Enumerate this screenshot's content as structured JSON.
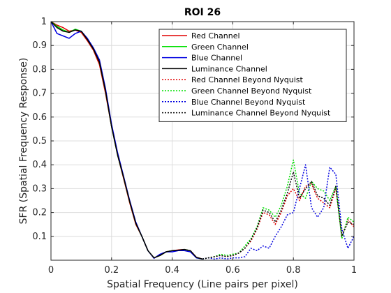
{
  "chart_data": {
    "type": "line",
    "title": "ROI 26",
    "xlabel": "Spatial Frequency (Line pairs per pixel)",
    "ylabel": "SFR (Spatial Frequency Response)",
    "xlim": [
      0,
      1.0
    ],
    "ylim": [
      0,
      1.0
    ],
    "xticks": [
      "0",
      "0.2",
      "0.4",
      "0.6",
      "0.8",
      "1"
    ],
    "yticks": [
      "0.1",
      "0.2",
      "0.3",
      "0.4",
      "0.5",
      "0.6",
      "0.7",
      "0.8",
      "0.9",
      "1"
    ],
    "grid": true,
    "legend_position": "top-right",
    "series": [
      {
        "name": "Red Channel",
        "color": "#e00000",
        "style": "solid",
        "x": [
          0,
          0.02,
          0.04,
          0.06,
          0.08,
          0.1,
          0.12,
          0.14,
          0.16,
          0.18,
          0.2,
          0.22,
          0.24,
          0.26,
          0.28,
          0.3,
          0.32,
          0.34,
          0.36,
          0.38,
          0.4,
          0.42,
          0.44,
          0.46,
          0.48,
          0.5
        ],
        "y": [
          1.0,
          0.985,
          0.975,
          0.96,
          0.965,
          0.955,
          0.92,
          0.88,
          0.82,
          0.7,
          0.56,
          0.44,
          0.34,
          0.24,
          0.15,
          0.1,
          0.04,
          0.01,
          0.02,
          0.035,
          0.04,
          0.043,
          0.045,
          0.04,
          0.012,
          0.005
        ]
      },
      {
        "name": "Green Channel",
        "color": "#00e000",
        "style": "solid",
        "x": [
          0,
          0.02,
          0.04,
          0.06,
          0.08,
          0.1,
          0.12,
          0.14,
          0.16,
          0.18,
          0.2,
          0.22,
          0.24,
          0.26,
          0.28,
          0.3,
          0.32,
          0.34,
          0.36,
          0.38,
          0.4,
          0.42,
          0.44,
          0.46,
          0.48,
          0.5
        ],
        "y": [
          1.0,
          0.98,
          0.965,
          0.955,
          0.968,
          0.96,
          0.925,
          0.885,
          0.83,
          0.71,
          0.56,
          0.44,
          0.345,
          0.245,
          0.155,
          0.1,
          0.04,
          0.01,
          0.02,
          0.035,
          0.04,
          0.04,
          0.045,
          0.04,
          0.01,
          0.005
        ]
      },
      {
        "name": "Blue Channel",
        "color": "#0000e0",
        "style": "solid",
        "x": [
          0,
          0.02,
          0.04,
          0.06,
          0.08,
          0.1,
          0.12,
          0.14,
          0.16,
          0.18,
          0.2,
          0.22,
          0.24,
          0.26,
          0.28,
          0.3,
          0.32,
          0.34,
          0.36,
          0.38,
          0.4,
          0.42,
          0.44,
          0.46,
          0.48,
          0.5
        ],
        "y": [
          1.0,
          0.95,
          0.94,
          0.93,
          0.95,
          0.96,
          0.93,
          0.89,
          0.84,
          0.72,
          0.57,
          0.45,
          0.35,
          0.25,
          0.16,
          0.1,
          0.04,
          0.008,
          0.025,
          0.035,
          0.035,
          0.04,
          0.04,
          0.035,
          0.01,
          0.005
        ]
      },
      {
        "name": "Luminance Channel",
        "color": "#000000",
        "style": "solid",
        "x": [
          0,
          0.02,
          0.04,
          0.06,
          0.08,
          0.1,
          0.12,
          0.14,
          0.16,
          0.18,
          0.2,
          0.22,
          0.24,
          0.26,
          0.28,
          0.3,
          0.32,
          0.34,
          0.36,
          0.38,
          0.4,
          0.42,
          0.44,
          0.46,
          0.48,
          0.5
        ],
        "y": [
          1.0,
          0.975,
          0.96,
          0.955,
          0.965,
          0.96,
          0.925,
          0.885,
          0.83,
          0.71,
          0.56,
          0.44,
          0.345,
          0.245,
          0.155,
          0.1,
          0.04,
          0.01,
          0.02,
          0.035,
          0.04,
          0.042,
          0.045,
          0.04,
          0.012,
          0.005
        ]
      },
      {
        "name": "Red Channel Beyond Nyquist",
        "color": "#e00000",
        "style": "dotted",
        "x": [
          0.5,
          0.52,
          0.54,
          0.56,
          0.58,
          0.6,
          0.62,
          0.64,
          0.66,
          0.68,
          0.7,
          0.72,
          0.74,
          0.76,
          0.78,
          0.8,
          0.82,
          0.84,
          0.86,
          0.88,
          0.9,
          0.92,
          0.94,
          0.96,
          0.98,
          1.0
        ],
        "y": [
          0.005,
          0.01,
          0.015,
          0.02,
          0.015,
          0.02,
          0.03,
          0.05,
          0.08,
          0.13,
          0.2,
          0.19,
          0.15,
          0.2,
          0.27,
          0.3,
          0.25,
          0.31,
          0.32,
          0.26,
          0.24,
          0.22,
          0.3,
          0.1,
          0.17,
          0.14
        ]
      },
      {
        "name": "Green Channel Beyond Nyquist",
        "color": "#00e000",
        "style": "dotted",
        "x": [
          0.5,
          0.52,
          0.54,
          0.56,
          0.58,
          0.6,
          0.62,
          0.64,
          0.66,
          0.68,
          0.7,
          0.72,
          0.74,
          0.76,
          0.78,
          0.8,
          0.82,
          0.84,
          0.86,
          0.88,
          0.9,
          0.92,
          0.94,
          0.96,
          0.98,
          1.0
        ],
        "y": [
          0.005,
          0.01,
          0.015,
          0.025,
          0.02,
          0.025,
          0.03,
          0.06,
          0.09,
          0.14,
          0.22,
          0.21,
          0.18,
          0.23,
          0.31,
          0.42,
          0.28,
          0.26,
          0.33,
          0.3,
          0.29,
          0.25,
          0.31,
          0.09,
          0.18,
          0.16
        ]
      },
      {
        "name": "Blue Channel Beyond Nyquist",
        "color": "#0000e0",
        "style": "dotted",
        "x": [
          0.5,
          0.52,
          0.54,
          0.56,
          0.58,
          0.6,
          0.62,
          0.64,
          0.66,
          0.68,
          0.7,
          0.72,
          0.74,
          0.76,
          0.78,
          0.8,
          0.82,
          0.84,
          0.86,
          0.88,
          0.9,
          0.92,
          0.94,
          0.96,
          0.98,
          1.0
        ],
        "y": [
          0.005,
          0.01,
          0.005,
          0.01,
          0.005,
          0.01,
          0.01,
          0.015,
          0.05,
          0.04,
          0.06,
          0.05,
          0.1,
          0.14,
          0.19,
          0.2,
          0.3,
          0.4,
          0.22,
          0.18,
          0.22,
          0.39,
          0.36,
          0.13,
          0.05,
          0.1
        ]
      },
      {
        "name": "Luminance Channel Beyond Nyquist",
        "color": "#000000",
        "style": "dotted",
        "x": [
          0.5,
          0.52,
          0.54,
          0.56,
          0.58,
          0.6,
          0.62,
          0.64,
          0.66,
          0.68,
          0.7,
          0.72,
          0.74,
          0.76,
          0.78,
          0.8,
          0.82,
          0.84,
          0.86,
          0.88,
          0.9,
          0.92,
          0.94,
          0.96,
          0.98,
          1.0
        ],
        "y": [
          0.005,
          0.01,
          0.015,
          0.02,
          0.015,
          0.02,
          0.03,
          0.05,
          0.085,
          0.135,
          0.21,
          0.2,
          0.16,
          0.21,
          0.28,
          0.37,
          0.26,
          0.3,
          0.33,
          0.27,
          0.26,
          0.23,
          0.31,
          0.1,
          0.16,
          0.15
        ]
      }
    ]
  }
}
